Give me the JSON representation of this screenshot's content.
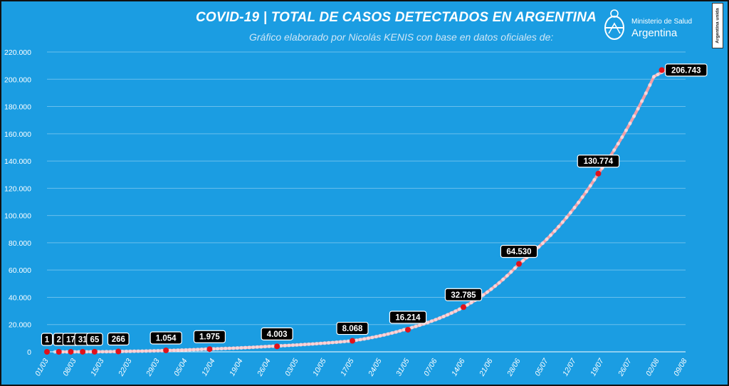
{
  "header": {
    "title": "COVID-19  |  TOTAL DE CASOS DETECTADOS EN ARGENTINA",
    "subtitle": "Gráfico elaborado por Nicolás KENIS con base en datos oficiales de:"
  },
  "logo": {
    "line1": "Ministerio de Salud",
    "line2": "Argentina"
  },
  "badge": {
    "text": "Argentina unida"
  },
  "colors": {
    "background": "#1b9de2",
    "line": "#f2a0a8",
    "marker": "#e0121b",
    "label_bg": "#000000"
  },
  "chart_data": {
    "type": "line",
    "title": "COVID-19  |  TOTAL DE CASOS DETECTADOS EN ARGENTINA",
    "xlabel": "",
    "ylabel": "",
    "ylim": [
      0,
      220000
    ],
    "grid": true,
    "y_ticks": [
      "0",
      "20.000",
      "40.000",
      "60.000",
      "80.000",
      "100.000",
      "120.000",
      "140.000",
      "160.000",
      "180.000",
      "200.000",
      "220.000"
    ],
    "x_ticks": [
      "01/03",
      "08/03",
      "15/03",
      "22/03",
      "29/03",
      "05/04",
      "12/04",
      "19/04",
      "26/04",
      "03/05",
      "10/05",
      "17/05",
      "24/05",
      "31/05",
      "07/06",
      "14/06",
      "21/06",
      "28/06",
      "05/07",
      "12/07",
      "19/07",
      "26/07",
      "02/08",
      "09/08"
    ],
    "x_tick_days": [
      0,
      7,
      14,
      21,
      28,
      35,
      42,
      49,
      56,
      63,
      70,
      77,
      84,
      91,
      98,
      105,
      112,
      119,
      126,
      133,
      140,
      147,
      154,
      161
    ],
    "series": [
      {
        "days": [
          2,
          5,
          6,
          7,
          9,
          12,
          14,
          18,
          21,
          25,
          31,
          40,
          56,
          77,
          90,
          105,
          119,
          139,
          153,
          156
        ],
        "values": [
          1,
          2,
          8,
          17,
          31,
          65,
          98,
          266,
          400,
          589,
          1054,
          1975,
          4003,
          8068,
          16214,
          32785,
          64530,
          130774,
          201919,
          206743
        ]
      }
    ],
    "labeled_points": [
      {
        "day": 0,
        "value": 1,
        "label": "1"
      },
      {
        "day": 3,
        "value": 2,
        "label": "2"
      },
      {
        "day": 6,
        "value": 17,
        "label": "17"
      },
      {
        "day": 9,
        "value": 31,
        "label": "31"
      },
      {
        "day": 12,
        "value": 65,
        "label": "65"
      },
      {
        "day": 18,
        "value": 266,
        "label": "266"
      },
      {
        "day": 30,
        "value": 1054,
        "label": "1.054"
      },
      {
        "day": 41,
        "value": 1975,
        "label": "1.975"
      },
      {
        "day": 58,
        "value": 4003,
        "label": "4.003"
      },
      {
        "day": 77,
        "value": 8068,
        "label": "8.068"
      },
      {
        "day": 91,
        "value": 16214,
        "label": "16.214"
      },
      {
        "day": 105,
        "value": 32785,
        "label": "32.785"
      },
      {
        "day": 119,
        "value": 64530,
        "label": "64.530"
      },
      {
        "day": 139,
        "value": 130774,
        "label": "130.774"
      },
      {
        "day": 155,
        "value": 206743,
        "label": "206.743"
      }
    ]
  }
}
